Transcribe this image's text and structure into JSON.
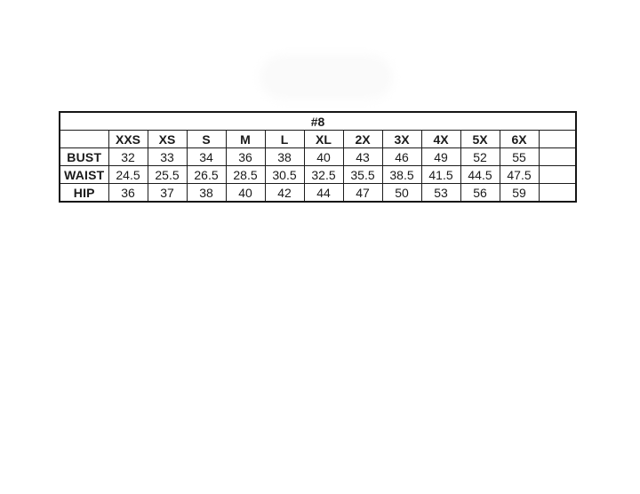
{
  "colors": {
    "background": "#ffffff",
    "table_border": "#1c1c1c",
    "text": "#1a1a1a",
    "watermark_blob": "#fafafa"
  },
  "chart_data": {
    "type": "table",
    "title": "#8",
    "columns": [
      "XXS",
      "XS",
      "S",
      "M",
      "L",
      "XL",
      "2X",
      "3X",
      "4X",
      "5X",
      "6X"
    ],
    "rows": [
      {
        "label": "BUST",
        "values": [
          "32",
          "33",
          "34",
          "36",
          "38",
          "40",
          "43",
          "46",
          "49",
          "52",
          "55"
        ]
      },
      {
        "label": "WAIST",
        "values": [
          "24.5",
          "25.5",
          "26.5",
          "28.5",
          "30.5",
          "32.5",
          "35.5",
          "38.5",
          "41.5",
          "44.5",
          "47.5"
        ]
      },
      {
        "label": "HIP",
        "values": [
          "36",
          "37",
          "38",
          "40",
          "42",
          "44",
          "47",
          "50",
          "53",
          "56",
          "59"
        ]
      }
    ],
    "notes": {
      "trailing_empty_column": true,
      "first_header_cell_empty": true
    }
  }
}
